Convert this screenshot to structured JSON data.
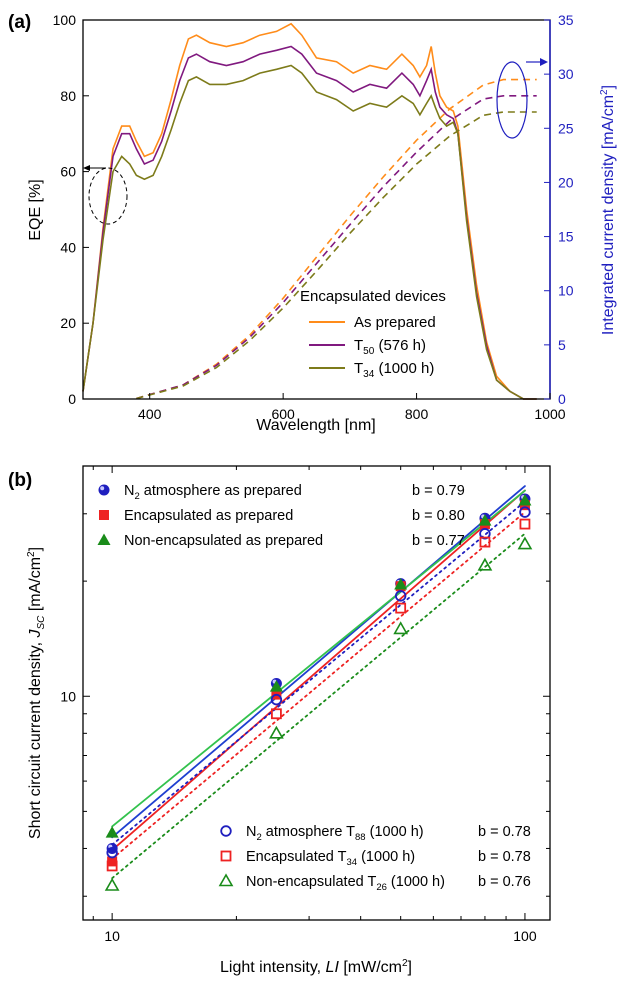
{
  "colors": {
    "orange": "#ff8c1a",
    "purple": "#80197f",
    "olive": "#7d7b1a",
    "blue": "#1f1fbf",
    "red": "#ee2222",
    "green": "#1a8c1a",
    "lightgreen": "#33c24d"
  },
  "chart_data": [
    {
      "type": "line",
      "panel_label": "(a)",
      "xlabel": "Wavelength [nm]",
      "ylabel": "EQE [%]",
      "y2label": "Integrated current density [mA/cm²]",
      "xlim": [
        300,
        1000
      ],
      "ylim": [
        0,
        100
      ],
      "y2lim": [
        0,
        35
      ],
      "x_ticks": [
        "400",
        "600",
        "800",
        "1000"
      ],
      "y_ticks": [
        "0",
        "20",
        "40",
        "60",
        "80",
        "100"
      ],
      "y2_ticks": [
        "0",
        "5",
        "10",
        "15",
        "20",
        "25",
        "30",
        "35"
      ],
      "legend_title": "Encapsulated devices",
      "legend_placement": "center-right",
      "series": [
        {
          "name": "As prepared",
          "legend_main": "As prepared",
          "legend_sub": "",
          "legend_tail": "",
          "color_key": "orange",
          "eqe": [
            [
              300,
              2
            ],
            [
              315,
              20
            ],
            [
              330,
              45
            ],
            [
              345,
              66
            ],
            [
              358,
              72
            ],
            [
              370,
              72
            ],
            [
              380,
              68
            ],
            [
              392,
              64
            ],
            [
              405,
              65
            ],
            [
              418,
              70
            ],
            [
              432,
              79
            ],
            [
              445,
              88
            ],
            [
              458,
              95
            ],
            [
              470,
              96
            ],
            [
              490,
              94
            ],
            [
              515,
              93
            ],
            [
              540,
              94
            ],
            [
              565,
              96
            ],
            [
              590,
              97
            ],
            [
              612,
              99
            ],
            [
              628,
              96
            ],
            [
              650,
              90
            ],
            [
              680,
              89
            ],
            [
              705,
              86
            ],
            [
              730,
              88
            ],
            [
              755,
              87
            ],
            [
              778,
              91
            ],
            [
              795,
              88
            ],
            [
              805,
              85
            ],
            [
              815,
              88
            ],
            [
              822,
              93
            ],
            [
              828,
              86
            ],
            [
              835,
              80
            ],
            [
              845,
              77
            ],
            [
              855,
              76
            ],
            [
              862,
              72
            ],
            [
              875,
              50
            ],
            [
              890,
              30
            ],
            [
              905,
              15
            ],
            [
              920,
              6
            ],
            [
              940,
              2
            ],
            [
              960,
              0
            ],
            [
              980,
              0
            ]
          ],
          "jsc": [
            [
              380,
              0.05
            ],
            [
              450,
              1.3
            ],
            [
              500,
              3.2
            ],
            [
              550,
              5.9
            ],
            [
              600,
              9.3
            ],
            [
              650,
              13.1
            ],
            [
              700,
              16.9
            ],
            [
              750,
              20.5
            ],
            [
              800,
              23.9
            ],
            [
              850,
              26.8
            ],
            [
              900,
              29.0
            ],
            [
              930,
              29.5
            ],
            [
              980,
              29.5
            ]
          ]
        },
        {
          "name": "T50 (576 h)",
          "legend_main": "T",
          "legend_sub": "50",
          "legend_tail": " (576 h)",
          "color_key": "purple",
          "eqe": [
            [
              300,
              2
            ],
            [
              315,
              20
            ],
            [
              330,
              44
            ],
            [
              345,
              64
            ],
            [
              358,
              70
            ],
            [
              370,
              70
            ],
            [
              380,
              66
            ],
            [
              392,
              62
            ],
            [
              405,
              63
            ],
            [
              418,
              68
            ],
            [
              432,
              76
            ],
            [
              445,
              84
            ],
            [
              458,
              90
            ],
            [
              470,
              91
            ],
            [
              490,
              89
            ],
            [
              515,
              88
            ],
            [
              540,
              89
            ],
            [
              565,
              91
            ],
            [
              590,
              92
            ],
            [
              612,
              93
            ],
            [
              628,
              91
            ],
            [
              650,
              86
            ],
            [
              680,
              84
            ],
            [
              705,
              81
            ],
            [
              730,
              83
            ],
            [
              755,
              82
            ],
            [
              778,
              86
            ],
            [
              795,
              83
            ],
            [
              805,
              80
            ],
            [
              815,
              84
            ],
            [
              822,
              87
            ],
            [
              828,
              81
            ],
            [
              835,
              77
            ],
            [
              845,
              75
            ],
            [
              855,
              74
            ],
            [
              862,
              70
            ],
            [
              875,
              48
            ],
            [
              890,
              28
            ],
            [
              905,
              14
            ],
            [
              920,
              5
            ],
            [
              940,
              2
            ],
            [
              960,
              0
            ],
            [
              980,
              0
            ]
          ],
          "jsc": [
            [
              380,
              0.05
            ],
            [
              450,
              1.3
            ],
            [
              500,
              3.1
            ],
            [
              550,
              5.7
            ],
            [
              600,
              8.9
            ],
            [
              650,
              12.5
            ],
            [
              700,
              16.1
            ],
            [
              750,
              19.6
            ],
            [
              800,
              22.8
            ],
            [
              850,
              25.7
            ],
            [
              900,
              27.7
            ],
            [
              930,
              28.0
            ],
            [
              980,
              28.0
            ]
          ]
        },
        {
          "name": "T34 (1000 h)",
          "legend_main": "T",
          "legend_sub": "34",
          "legend_tail": " (1000 h)",
          "color_key": "olive",
          "eqe": [
            [
              300,
              2
            ],
            [
              315,
              20
            ],
            [
              330,
              42
            ],
            [
              345,
              60
            ],
            [
              358,
              64
            ],
            [
              370,
              62
            ],
            [
              380,
              59
            ],
            [
              392,
              58
            ],
            [
              405,
              59
            ],
            [
              418,
              64
            ],
            [
              432,
              71
            ],
            [
              445,
              78
            ],
            [
              458,
              84
            ],
            [
              470,
              85
            ],
            [
              490,
              83
            ],
            [
              515,
              83
            ],
            [
              540,
              84
            ],
            [
              565,
              86
            ],
            [
              590,
              87
            ],
            [
              612,
              88
            ],
            [
              628,
              86
            ],
            [
              650,
              81
            ],
            [
              680,
              79
            ],
            [
              705,
              76
            ],
            [
              730,
              78
            ],
            [
              755,
              77
            ],
            [
              778,
              80
            ],
            [
              795,
              78
            ],
            [
              805,
              75
            ],
            [
              815,
              78
            ],
            [
              822,
              80
            ],
            [
              828,
              77
            ],
            [
              835,
              74
            ],
            [
              845,
              72
            ],
            [
              855,
              73
            ],
            [
              862,
              70
            ],
            [
              875,
              47
            ],
            [
              890,
              27
            ],
            [
              905,
              13
            ],
            [
              920,
              5
            ],
            [
              940,
              2
            ],
            [
              960,
              0
            ],
            [
              980,
              0
            ]
          ],
          "jsc": [
            [
              380,
              0.05
            ],
            [
              450,
              1.2
            ],
            [
              500,
              2.9
            ],
            [
              550,
              5.4
            ],
            [
              600,
              8.4
            ],
            [
              650,
              11.8
            ],
            [
              700,
              15.3
            ],
            [
              750,
              18.6
            ],
            [
              800,
              21.7
            ],
            [
              850,
              24.3
            ],
            [
              900,
              26.2
            ],
            [
              930,
              26.5
            ],
            [
              980,
              26.5
            ]
          ]
        }
      ]
    },
    {
      "type": "scatter",
      "panel_label": "(b)",
      "xlabel": "Light intensity, LI [mW/cm²]",
      "xlabel_main": "Light intensity, ",
      "xlabel_italic": "LI",
      "xlabel_unit": " [mW/cm²]",
      "ylabel": "Short circuit current density, JSC [mA/cm²]",
      "ylabel_main": "Short circuit current density, ",
      "ylabel_italic": "J",
      "ylabel_sub": "SC",
      "ylabel_unit": " [mA/cm²]",
      "x_scale": "log",
      "y_scale": "log",
      "xlim": [
        8.5,
        115
      ],
      "ylim": [
        2.6,
        40
      ],
      "x_ticks": [
        {
          "label": "10",
          "value": 10
        },
        {
          "label": "100",
          "value": 100
        }
      ],
      "y_ticks": [
        {
          "label": "10",
          "value": 10
        }
      ],
      "x": [
        10,
        25,
        50,
        80,
        100
      ],
      "series": [
        {
          "name": "N2 atmosphere as prepared",
          "legend_main": "N",
          "legend_sub": "2",
          "legend_tail": " atmosphere as prepared",
          "slope_label": "b = 0.79",
          "marker": "sphere",
          "color_key": "blue",
          "fit": "solid",
          "values": [
            4.0,
            10.8,
            19.7,
            29.2,
            32.8
          ]
        },
        {
          "name": "Encapsulated as prepared",
          "legend_main": "Encapsulated as prepared",
          "legend_sub": "",
          "legend_tail": "",
          "slope_label": "b = 0.80",
          "marker": "square-filled",
          "color_key": "red",
          "fit": "solid",
          "values": [
            3.7,
            10.1,
            19.4,
            28.2,
            31.6
          ]
        },
        {
          "name": "Non-encapsulated as prepared",
          "legend_main": "Non-encapsulated as prepared",
          "legend_sub": "",
          "legend_tail": "",
          "slope_label": "b = 0.77",
          "marker": "triangle-filled",
          "color_key": "green",
          "fit": "solid",
          "values": [
            4.4,
            10.6,
            19.6,
            28.8,
            32.5
          ]
        },
        {
          "name": "N2 atmosphere T88 (1000 h)",
          "legend_main": "N",
          "legend_sub": "2",
          "legend_tail": " atmosphere T",
          "legend_sub2": "88",
          "legend_tail2": " (1000 h)",
          "slope_label": "b = 0.78",
          "marker": "circle-open",
          "color_key": "blue",
          "fit": "dotted",
          "values": [
            3.9,
            9.8,
            18.3,
            26.6,
            30.3
          ]
        },
        {
          "name": "Encapsulated T34 (1000 h)",
          "legend_main": "Encapsulated T",
          "legend_sub": "34",
          "legend_tail": " (1000 h)",
          "legend_sub2": "",
          "legend_tail2": "",
          "slope_label": "b = 0.78",
          "marker": "square-open",
          "color_key": "red",
          "fit": "dotted",
          "values": [
            3.6,
            9.0,
            17.0,
            25.3,
            28.2
          ]
        },
        {
          "name": "Non-encapsulated T26 (1000 h)",
          "legend_main": "Non-encapsulated T",
          "legend_sub": "26",
          "legend_tail": " (1000 h)",
          "legend_sub2": "",
          "legend_tail2": "",
          "slope_label": "b = 0.76",
          "marker": "triangle-open",
          "color_key": "green",
          "fit": "dotted",
          "values": [
            3.2,
            8.0,
            15.0,
            22.0,
            25.0
          ]
        }
      ]
    }
  ]
}
